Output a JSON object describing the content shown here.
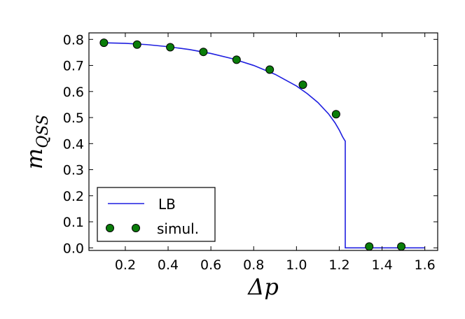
{
  "chart_data": {
    "type": "line",
    "xlabel": "Δp",
    "ylabel": "m",
    "ylabel_subscript": "QSS",
    "xlim": [
      0.03,
      1.66
    ],
    "ylim": [
      -0.01,
      0.825
    ],
    "x_ticks": [
      "0.2",
      "0.4",
      "0.6",
      "0.8",
      "1.0",
      "1.2",
      "1.4",
      "1.6"
    ],
    "x_tick_values": [
      0.2,
      0.4,
      0.6,
      0.8,
      1.0,
      1.2,
      1.4,
      1.6
    ],
    "y_ticks": [
      "0.0",
      "0.1",
      "0.2",
      "0.3",
      "0.4",
      "0.5",
      "0.6",
      "0.7",
      "0.8"
    ],
    "y_tick_values": [
      0.0,
      0.1,
      0.2,
      0.3,
      0.4,
      0.5,
      0.6,
      0.7,
      0.8
    ],
    "legend_position": "lower-left",
    "grid": false,
    "series": [
      {
        "name": "LB",
        "kind": "line",
        "color": "#1f1fe0",
        "x": [
          0.1,
          0.2,
          0.3,
          0.4,
          0.5,
          0.6,
          0.7,
          0.8,
          0.9,
          1.0,
          1.05,
          1.1,
          1.15,
          1.18,
          1.2,
          1.215,
          1.225,
          1.228,
          1.228,
          1.24,
          1.3,
          1.4,
          1.5,
          1.6
        ],
        "y": [
          0.787,
          0.785,
          0.78,
          0.772,
          0.761,
          0.746,
          0.726,
          0.7,
          0.666,
          0.621,
          0.592,
          0.558,
          0.514,
          0.48,
          0.452,
          0.427,
          0.413,
          0.41,
          0.0,
          0.0,
          0.0,
          0.0,
          0.0,
          0.0
        ]
      },
      {
        "name": "simul.",
        "kind": "scatter",
        "color": "#0a7d0a",
        "x": [
          0.1,
          0.255,
          0.41,
          0.565,
          0.72,
          0.875,
          1.03,
          1.185,
          1.34,
          1.49
        ],
        "y": [
          0.787,
          0.78,
          0.77,
          0.752,
          0.722,
          0.684,
          0.626,
          0.513,
          0.005,
          0.005
        ]
      }
    ]
  }
}
